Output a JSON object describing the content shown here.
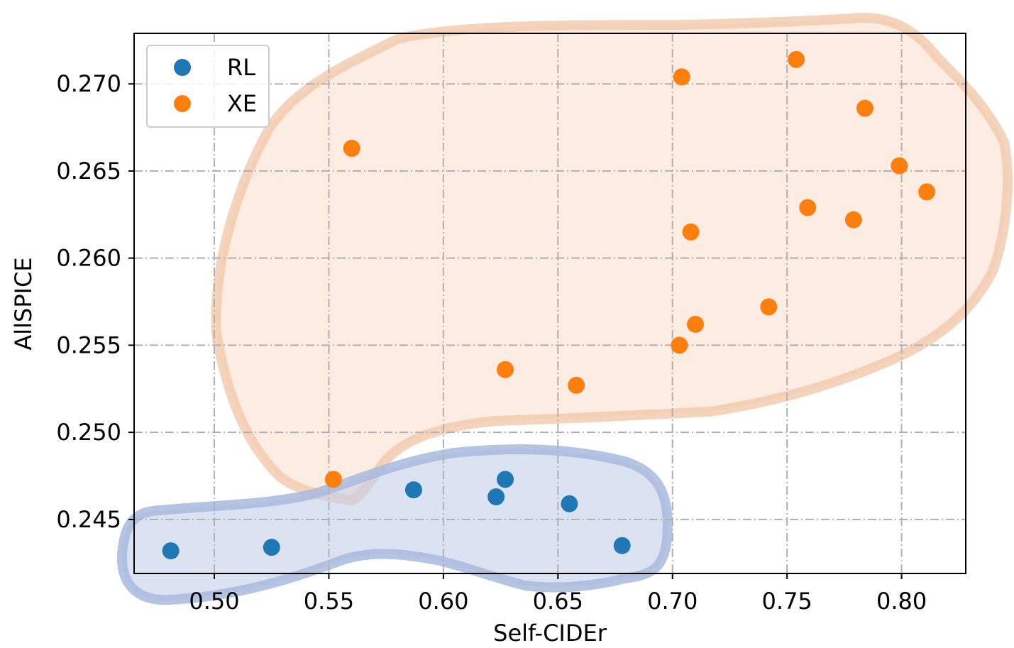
{
  "chart_data": {
    "type": "scatter",
    "title": "",
    "xlabel": "Self-CIDEr",
    "ylabel": "AllSPICE",
    "xlim": [
      0.465,
      0.828
    ],
    "ylim": [
      0.2419,
      0.2729
    ],
    "xticks": [
      0.5,
      0.55,
      0.6,
      0.65,
      0.7,
      0.75,
      0.8
    ],
    "xtick_labels": [
      "0.50",
      "0.55",
      "0.60",
      "0.65",
      "0.70",
      "0.75",
      "0.80"
    ],
    "yticks": [
      0.245,
      0.25,
      0.255,
      0.26,
      0.265,
      0.27
    ],
    "ytick_labels": [
      "0.245",
      "0.250",
      "0.255",
      "0.260",
      "0.265",
      "0.270"
    ],
    "grid": true,
    "legend_position": "top-left",
    "series": [
      {
        "name": "RL",
        "color": "#1f77b4",
        "points": [
          [
            0.481,
            0.2432
          ],
          [
            0.525,
            0.2434
          ],
          [
            0.587,
            0.2467
          ],
          [
            0.623,
            0.2463
          ],
          [
            0.627,
            0.2473
          ],
          [
            0.655,
            0.2459
          ],
          [
            0.678,
            0.2435
          ]
        ]
      },
      {
        "name": "XE",
        "color": "#ff7f0e",
        "points": [
          [
            0.552,
            0.2473
          ],
          [
            0.56,
            0.2663
          ],
          [
            0.627,
            0.2536
          ],
          [
            0.658,
            0.2527
          ],
          [
            0.703,
            0.255
          ],
          [
            0.704,
            0.2704
          ],
          [
            0.708,
            0.2615
          ],
          [
            0.71,
            0.2562
          ],
          [
            0.742,
            0.2572
          ],
          [
            0.754,
            0.2714
          ],
          [
            0.759,
            0.2629
          ],
          [
            0.779,
            0.2622
          ],
          [
            0.784,
            0.2686
          ],
          [
            0.799,
            0.2653
          ],
          [
            0.811,
            0.2638
          ]
        ]
      }
    ],
    "regions": [
      {
        "series": "XE",
        "fill": "#f9d9c3",
        "stroke": "#f1c9ad"
      },
      {
        "series": "RL",
        "fill": "#c3cfe9",
        "stroke": "#a9bade"
      }
    ]
  }
}
